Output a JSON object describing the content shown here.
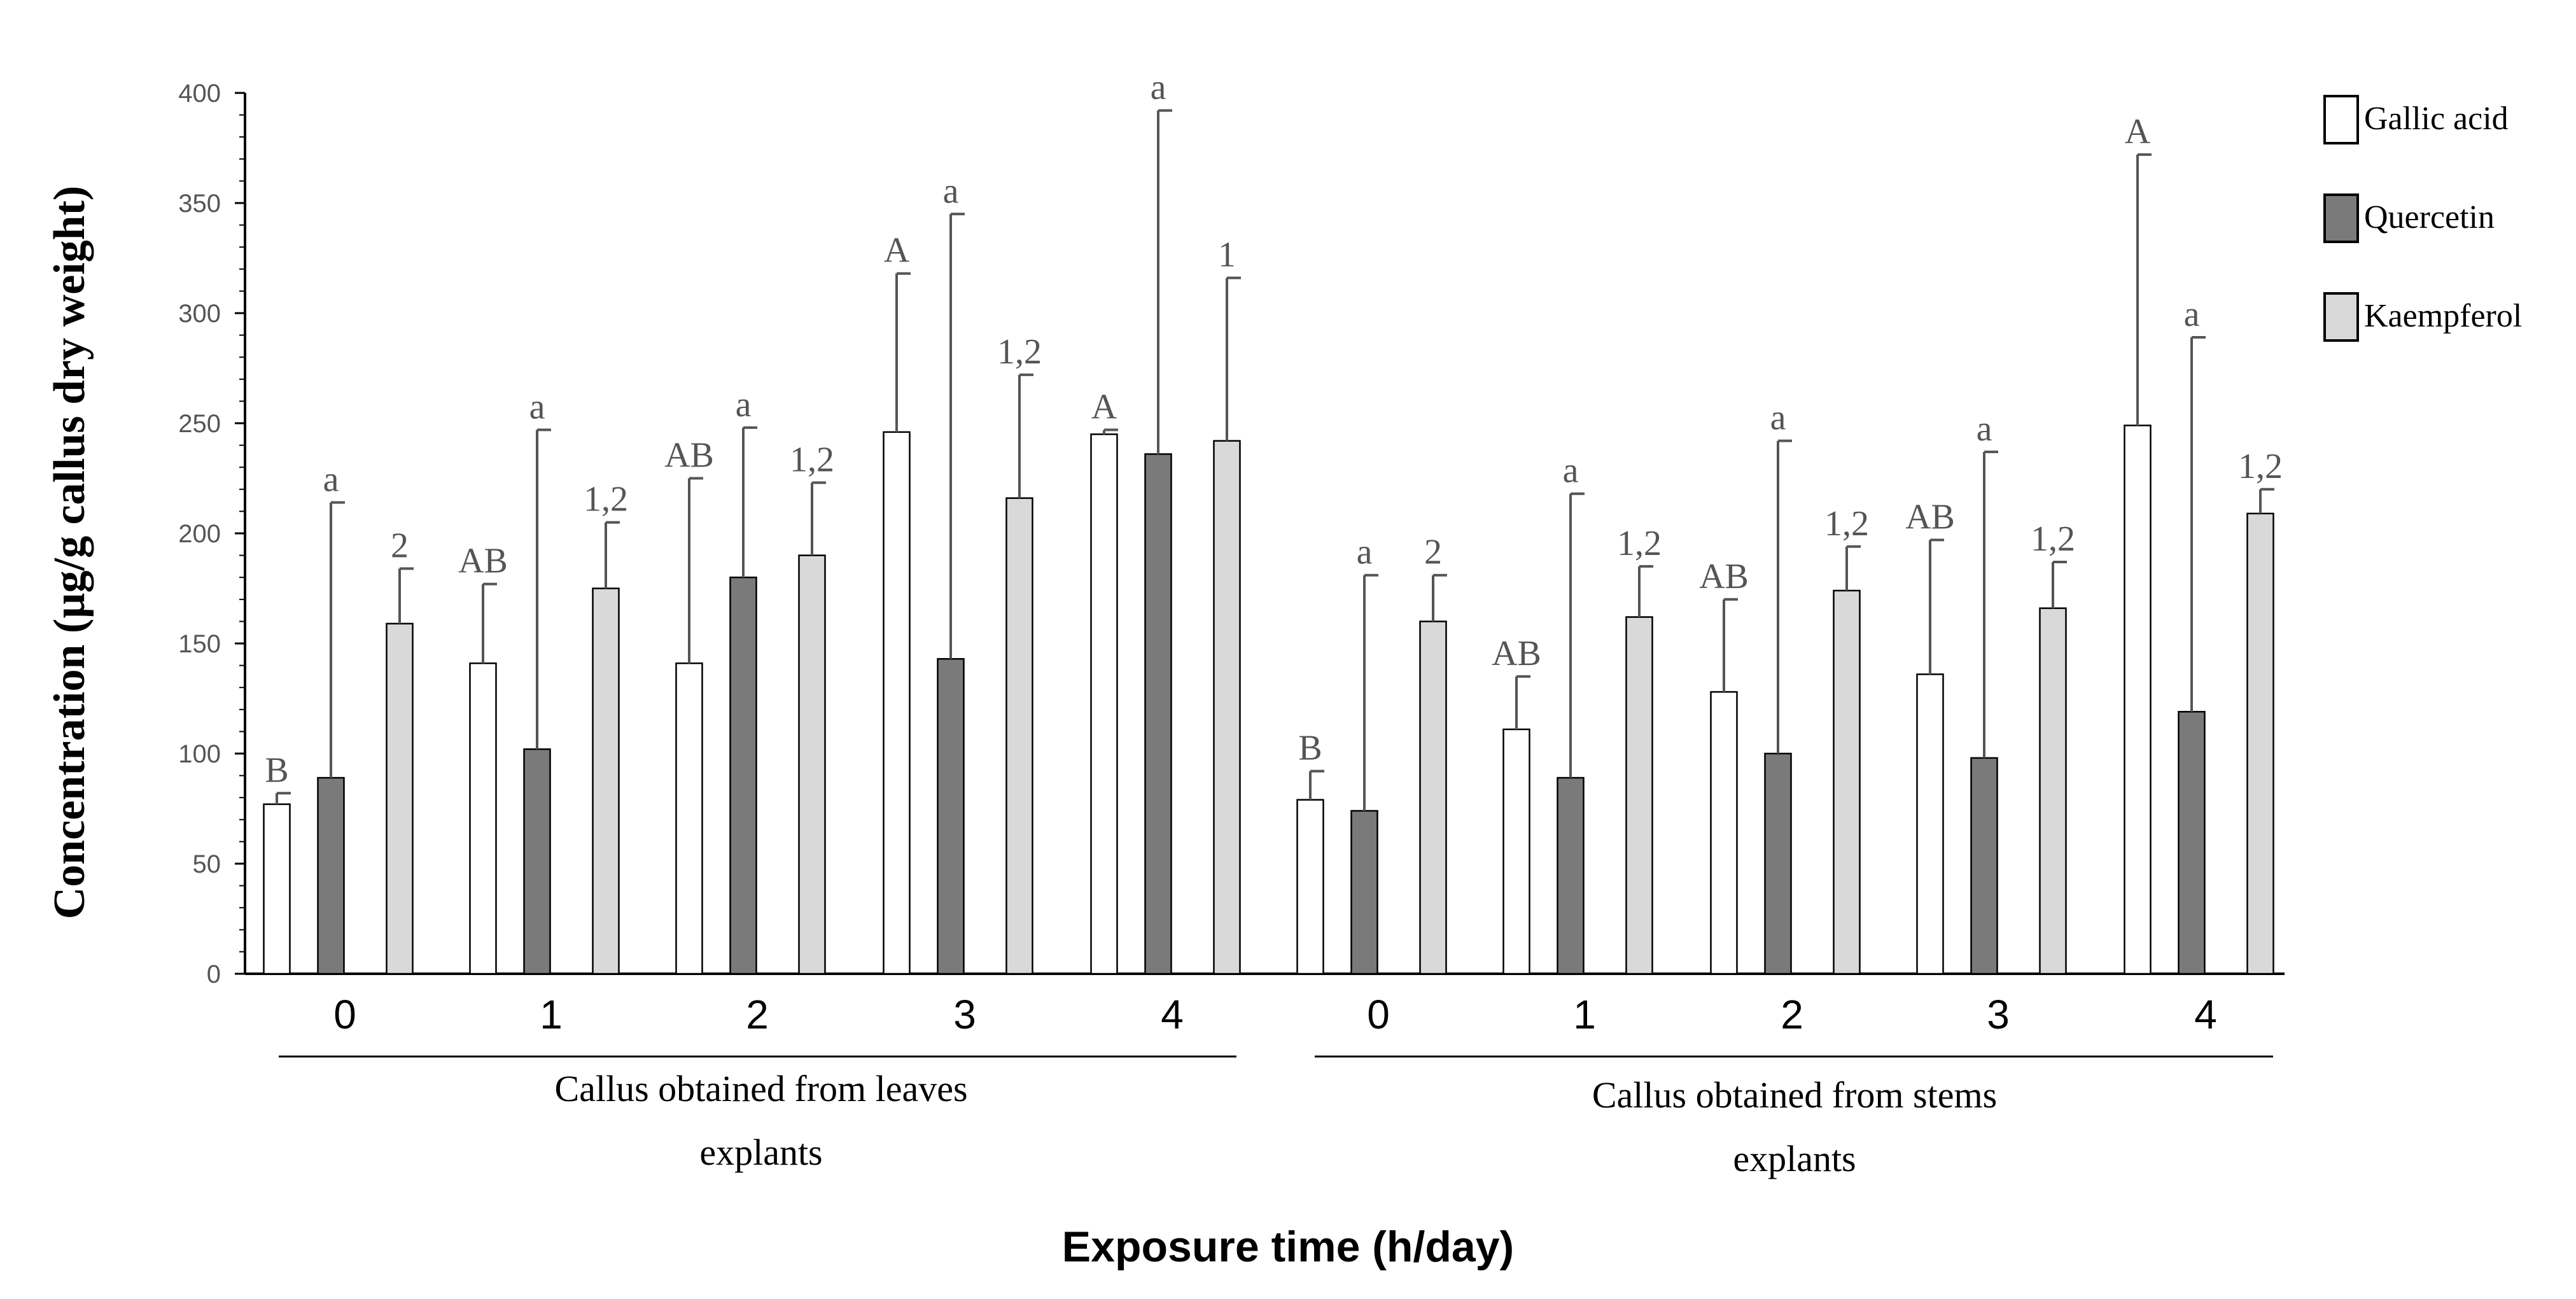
{
  "chart_data": {
    "type": "bar",
    "ylabel": "Concentration (µg/g callus dry weight)",
    "xlabel": "Exposure time (h/day)",
    "ylim": [
      0,
      400
    ],
    "yticks": [
      0,
      50,
      100,
      150,
      200,
      250,
      300,
      350,
      400
    ],
    "series": [
      {
        "name": "Gallic acid",
        "color": "#ffffff"
      },
      {
        "name": "Quercetin",
        "color": "#7a7a7a"
      },
      {
        "name": "Kaempferol",
        "color": "#d9d9d9"
      }
    ],
    "groups": [
      {
        "label_line1": "Callus obtained from leaves",
        "label_line2": "explants",
        "categories": [
          "0",
          "1",
          "2",
          "3",
          "4"
        ],
        "values": [
          [
            77,
            89,
            159
          ],
          [
            141,
            102,
            175
          ],
          [
            141,
            180,
            190
          ],
          [
            246,
            143,
            216
          ],
          [
            245,
            236,
            242
          ]
        ],
        "errors": [
          [
            5,
            125,
            25
          ],
          [
            36,
            145,
            30
          ],
          [
            84,
            68,
            33
          ],
          [
            72,
            202,
            56
          ],
          [
            2,
            156,
            74
          ]
        ],
        "letters": [
          [
            "B",
            "a",
            "2"
          ],
          [
            "AB",
            "a",
            "1,2"
          ],
          [
            "AB",
            "a",
            "1,2"
          ],
          [
            "A",
            "a",
            "1,2"
          ],
          [
            "A",
            "a",
            "1"
          ]
        ]
      },
      {
        "label_line1": "Callus obtained from stems",
        "label_line2": "explants",
        "categories": [
          "0",
          "1",
          "2",
          "3",
          "4"
        ],
        "values": [
          [
            79,
            74,
            160
          ],
          [
            111,
            89,
            162
          ],
          [
            128,
            100,
            174
          ],
          [
            136,
            98,
            166
          ],
          [
            249,
            119,
            209
          ]
        ],
        "errors": [
          [
            13,
            107,
            21
          ],
          [
            24,
            129,
            23
          ],
          [
            42,
            142,
            20
          ],
          [
            61,
            139,
            21
          ],
          [
            123,
            170,
            11
          ]
        ],
        "letters": [
          [
            "B",
            "a",
            "2"
          ],
          [
            "AB",
            "a",
            "1,2"
          ],
          [
            "AB",
            "a",
            "1,2"
          ],
          [
            "AB",
            "a",
            "1,2"
          ],
          [
            "A",
            "a",
            "1,2"
          ]
        ]
      }
    ]
  }
}
